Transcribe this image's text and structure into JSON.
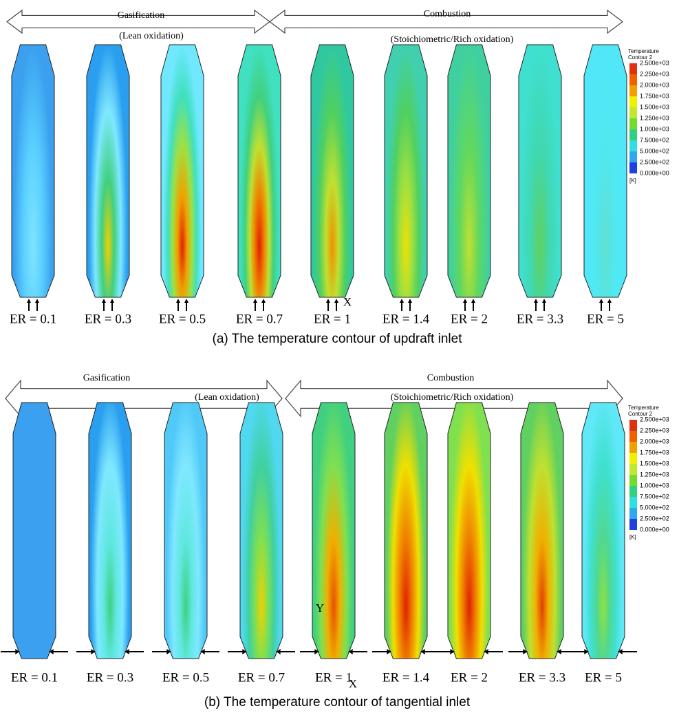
{
  "panels": [
    {
      "left_arrow": {
        "label": "Gasification",
        "sublabel": "(Lean oxidation)"
      },
      "right_arrow": {
        "label": "Combustion",
        "sublabel": "(Stoichiometric/Rich oxidation)"
      },
      "columns": [
        "ER = 0.1",
        "ER = 0.3",
        "ER = 0.5",
        "ER = 0.7",
        "ER = 1",
        "ER = 1.4",
        "ER = 2",
        "ER = 3.3",
        "ER = 5"
      ],
      "axis_labels": [
        "X"
      ],
      "legend": {
        "title": [
          "Temperature",
          "Contour 2"
        ],
        "ticks": [
          "2.500e+03",
          "2.250e+03",
          "2.000e+03",
          "1.750e+03",
          "1.500e+03",
          "1.250e+03",
          "1.000e+03",
          "7.500e+02",
          "5.000e+02",
          "2.500e+02",
          "0.000e+00"
        ],
        "unit": "[K]"
      },
      "caption": "(a) The temperature contour of updraft inlet"
    },
    {
      "left_arrow": {
        "label": "Gasification",
        "sublabel": "(Lean oxidation)"
      },
      "right_arrow": {
        "label": "Combustion",
        "sublabel": "(Stoichiometric/Rich oxidation)"
      },
      "columns": [
        "ER = 0.1",
        "ER = 0.3",
        "ER = 0.5",
        "ER = 0.7",
        "ER = 1",
        "ER = 1.4",
        "ER = 2",
        "ER = 3.3",
        "ER = 5"
      ],
      "axis_labels": [
        "Y",
        "X"
      ],
      "legend": {
        "title": [
          "Temperature",
          "Contour 2"
        ],
        "ticks": [
          "2.500e+03",
          "2.250e+03",
          "2.000e+03",
          "1.750e+03",
          "1.500e+03",
          "1.250e+03",
          "1.000e+03",
          "7.500e+02",
          "5.000e+02",
          "2.500e+02",
          "0.000e+00"
        ],
        "unit": "[K]"
      },
      "caption": "(b) The temperature contour of tangential inlet"
    }
  ]
}
